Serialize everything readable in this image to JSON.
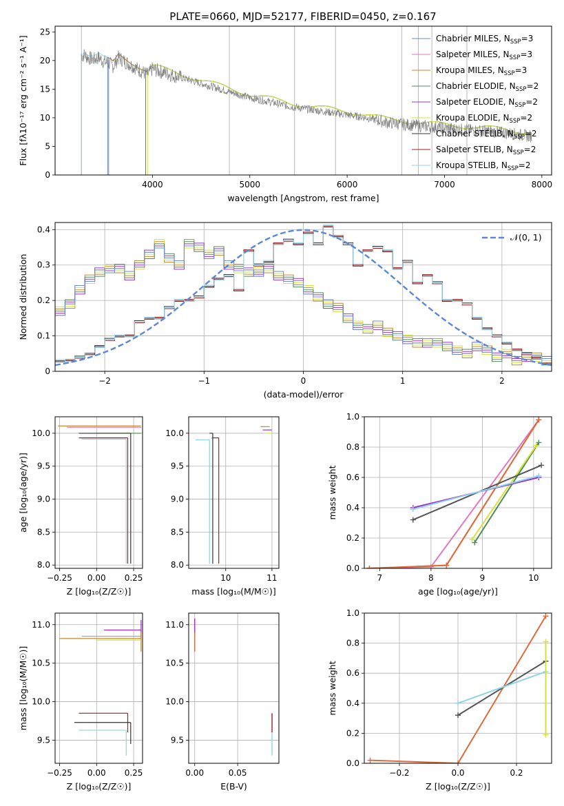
{
  "figure": {
    "title": "PLATE=0660, MJD=52177, FIBERID=0450, z=0.167"
  },
  "series_styles": [
    {
      "name": "Chabrier MILES",
      "nssp": "3",
      "color": "#6b8dd6"
    },
    {
      "name": "Salpeter MILES",
      "nssp": "3",
      "color": "#e377c2"
    },
    {
      "name": "Kroupa MILES",
      "nssp": "3",
      "color": "#c28a2b"
    },
    {
      "name": "Chabrier ELODIE",
      "nssp": "2",
      "color": "#4f8b5b"
    },
    {
      "name": "Salpeter ELODIE",
      "nssp": "2",
      "color": "#9b30c9"
    },
    {
      "name": "Kroupa ELODIE",
      "nssp": "2",
      "color": "#d4e33a"
    },
    {
      "name": "Chabrier STELIB",
      "nssp": "2",
      "color": "#333333"
    },
    {
      "name": "Salpeter STELIB",
      "nssp": "2",
      "color": "#a01f1f"
    },
    {
      "name": "Kroupa STELIB",
      "nssp": "2",
      "color": "#8fd3e8"
    }
  ],
  "chart_data": [
    {
      "id": "spectrum",
      "type": "line",
      "xlabel": "wavelength [Angstrom, rest frame]",
      "ylabel": "Flux [fλ10⁻¹⁷ erg cm⁻² s⁻¹ A⁻¹]",
      "xlim": [
        3000,
        8100
      ],
      "ylim": [
        0,
        26
      ],
      "xticks": [
        4000,
        5000,
        6000,
        7000,
        8000
      ],
      "yticks": [
        0,
        5,
        10,
        15,
        20,
        25
      ],
      "grid": false,
      "legend_placement": "right",
      "observed_color": "#808080",
      "observed": {
        "x": [
          3270,
          3300,
          3350,
          3400,
          3450,
          3500,
          3550,
          3600,
          3650,
          3700,
          3750,
          3800,
          3850,
          3900,
          3950,
          4000,
          4100,
          4200,
          4300,
          4400,
          4500,
          4600,
          4700,
          4800,
          4900,
          5000,
          5200,
          5400,
          5600,
          5800,
          6000,
          6200,
          6400,
          6600,
          6800,
          7000,
          7200,
          7400,
          7600,
          7800,
          7900
        ],
        "y": [
          20.8,
          21.0,
          20.4,
          20.2,
          20.5,
          19.8,
          19.5,
          19.0,
          20.5,
          20.0,
          19.5,
          19.0,
          18.5,
          18.0,
          17.5,
          18.5,
          18.0,
          17.5,
          17.0,
          16.5,
          16.0,
          15.5,
          15.0,
          14.5,
          14.0,
          13.5,
          12.8,
          12.0,
          11.5,
          11.0,
          10.5,
          10.0,
          9.2,
          8.8,
          8.5,
          8.2,
          7.9,
          7.7,
          7.4,
          7.0,
          6.7
        ]
      },
      "model_starts": [
        {
          "series": "Kroupa STELIB",
          "x0": 3270
        },
        {
          "series": "Chabrier MILES",
          "x0": 3540
        },
        {
          "series": "Kroupa MILES",
          "x0": 3550
        },
        {
          "series": "Chabrier ELODIE",
          "x0": 3930
        },
        {
          "series": "Kroupa ELODIE",
          "x0": 3950
        }
      ]
    },
    {
      "id": "residuals",
      "type": "area",
      "xlabel": "(data-model)/error",
      "ylabel": "Normed distribution",
      "xlim": [
        -2.5,
        2.5
      ],
      "ylim": [
        0,
        0.42
      ],
      "xticks": [
        -2,
        -1,
        0,
        1,
        2
      ],
      "yticks": [
        0.0,
        0.1,
        0.2,
        0.3,
        0.4
      ],
      "grid": true,
      "legend_placement": "top-right",
      "gaussian_label": "𝒩(0, 1)",
      "gaussian_color": "#5b87d9",
      "hist_bins_start": -2.5,
      "hist_bin_width": 0.1,
      "hist_wide": [
        0.17,
        0.19,
        0.23,
        0.26,
        0.28,
        0.29,
        0.29,
        0.27,
        0.3,
        0.33,
        0.36,
        0.32,
        0.3,
        0.36,
        0.35,
        0.33,
        0.34,
        0.3,
        0.29,
        0.28,
        0.28,
        0.29,
        0.27,
        0.26,
        0.25,
        0.23,
        0.21,
        0.19,
        0.18,
        0.15,
        0.13,
        0.12,
        0.13,
        0.11,
        0.1,
        0.09,
        0.08,
        0.08,
        0.08,
        0.07,
        0.06,
        0.05,
        0.07,
        0.06,
        0.04,
        0.05,
        0.03,
        0.04,
        0.04,
        0.03
      ],
      "hist_narrow": [
        0.03,
        0.03,
        0.04,
        0.05,
        0.07,
        0.09,
        0.1,
        0.1,
        0.14,
        0.15,
        0.15,
        0.18,
        0.2,
        0.2,
        0.21,
        0.24,
        0.26,
        0.27,
        0.23,
        0.34,
        0.3,
        0.31,
        0.36,
        0.37,
        0.36,
        0.39,
        0.36,
        0.41,
        0.38,
        0.36,
        0.3,
        0.34,
        0.35,
        0.34,
        0.29,
        0.31,
        0.25,
        0.27,
        0.25,
        0.2,
        0.2,
        0.19,
        0.15,
        0.12,
        0.1,
        0.08,
        0.06,
        0.05,
        0.04,
        0.02
      ]
    },
    {
      "id": "age-vs-Z",
      "type": "line",
      "xlabel": "Z [log₁₀(Z/Z☉)]",
      "ylabel": "age  [log₁₀(age/yr)]",
      "xlim": [
        -0.28,
        0.31
      ],
      "ylim": [
        7.95,
        10.25
      ],
      "xticks": [
        -0.25,
        0.0,
        0.25
      ],
      "yticks": [
        8.0,
        8.5,
        9.0,
        9.5,
        10.0
      ],
      "xticklabels": [
        "−0.25",
        "0.00",
        "0.25"
      ],
      "yticklabels": [
        "8.0",
        "8.5",
        "9.0",
        "9.5",
        "10.0"
      ],
      "grid": true,
      "ebars": [
        {
          "color": "#c28a2b",
          "y": 10.11,
          "x": [
            -0.26,
            0.3
          ]
        },
        {
          "color": "#e377c2",
          "y": 10.09,
          "x": [
            -0.2,
            0.3
          ]
        },
        {
          "color": "#d4e33a",
          "y": 10.0,
          "x": [
            0.0,
            0.3
          ]
        },
        {
          "color": "#4f8b5b",
          "y": 10.0,
          "x": [
            0.0,
            0.3
          ]
        },
        {
          "color": "#333333",
          "y": 10.0,
          "x": [
            -0.12,
            0.23
          ],
          "v": [
            8.02,
            10.0
          ]
        },
        {
          "color": "#a01f1f",
          "y": 9.93,
          "x": [
            -0.12,
            0.21
          ],
          "v": [
            8.02,
            9.93
          ]
        },
        {
          "color": "#8fd3e8",
          "y": 9.91,
          "x": [
            -0.1,
            0.2
          ],
          "v": [
            8.02,
            9.91
          ]
        }
      ]
    },
    {
      "id": "age-vs-mass",
      "type": "line",
      "xlabel": "mass [log₁₀(M/M☉)]",
      "ylabel": "",
      "xlim": [
        9.2,
        11.15
      ],
      "ylim": [
        7.95,
        10.25
      ],
      "xticks": [
        10,
        11
      ],
      "yticks": [
        8.0,
        8.5,
        9.0,
        9.5,
        10.0
      ],
      "yticklabels": [
        "8.0",
        "8.5",
        "9.0",
        "9.5",
        "10.0"
      ],
      "grid": true,
      "ebars": [
        {
          "color": "#333333",
          "y": 10.0,
          "x": [
            9.65,
            9.72
          ],
          "v": [
            8.02,
            10.0
          ]
        },
        {
          "color": "#a01f1f",
          "y": 9.93,
          "x": [
            9.7,
            9.85
          ],
          "v": [
            8.02,
            9.93
          ]
        },
        {
          "color": "#8fd3e8",
          "y": 9.9,
          "x": [
            9.35,
            9.65
          ],
          "v": [
            8.02,
            9.9
          ]
        },
        {
          "color": "#c28a2b",
          "y": 10.1,
          "x": [
            10.75,
            10.95
          ]
        },
        {
          "color": "#9b30c9",
          "y": 10.05,
          "x": [
            10.8,
            11.0
          ]
        },
        {
          "color": "#d4e33a",
          "y": 10.0,
          "x": [
            10.85,
            11.0
          ]
        }
      ]
    },
    {
      "id": "massweight-vs-age",
      "type": "line",
      "xlabel": "age  [log₁₀(age/yr)]",
      "ylabel": "mass weight",
      "xlim": [
        6.7,
        10.35
      ],
      "ylim": [
        0.0,
        1.0
      ],
      "xticks": [
        7,
        8,
        9,
        10
      ],
      "yticks": [
        0.0,
        0.2,
        0.4,
        0.6,
        0.8,
        1.0
      ],
      "yticklabels": [
        "0.0",
        "0.2",
        "0.4",
        "0.6",
        "0.8",
        "1.0"
      ],
      "grid": true,
      "series": [
        {
          "name": "Salpeter MILES",
          "color": "#e377c2",
          "x": [
            6.8,
            8.0,
            10.1
          ],
          "y": [
            0.0,
            0.01,
            0.98
          ]
        },
        {
          "name": "Kroupa MILES",
          "color": "#c28a2b",
          "x": [
            6.8,
            8.3,
            10.1
          ],
          "y": [
            0.0,
            0.02,
            0.98
          ]
        },
        {
          "name": "Chabrier MILES",
          "color": "#e06a3a",
          "x": [
            6.8,
            8.3,
            10.1
          ],
          "y": [
            0.0,
            0.02,
            0.98
          ]
        },
        {
          "name": "Chabrier ELODIE",
          "color": "#4f8b5b",
          "x": [
            8.85,
            10.1
          ],
          "y": [
            0.17,
            0.83
          ]
        },
        {
          "name": "Kroupa ELODIE",
          "color": "#d4e33a",
          "x": [
            8.8,
            10.05
          ],
          "y": [
            0.19,
            0.81
          ]
        },
        {
          "name": "Chabrier STELIB",
          "color": "#555555",
          "x": [
            7.65,
            10.15
          ],
          "y": [
            0.32,
            0.68
          ]
        },
        {
          "name": "Salpeter STELIB",
          "color": "#9b30c9",
          "x": [
            7.65,
            10.1
          ],
          "y": [
            0.4,
            0.6
          ]
        },
        {
          "name": "Kroupa STELIB",
          "color": "#8fd3e8",
          "x": [
            7.65,
            10.1
          ],
          "y": [
            0.39,
            0.61
          ]
        }
      ]
    },
    {
      "id": "mass-vs-Z",
      "type": "line",
      "xlabel": "Z [log₁₀(Z/Z☉)]",
      "ylabel": "mass [log₁₀(M/M☉)]",
      "xlim": [
        -0.28,
        0.31
      ],
      "ylim": [
        9.2,
        11.15
      ],
      "xticks": [
        -0.25,
        0.0,
        0.25
      ],
      "xticklabels": [
        "−0.25",
        "0.00",
        "0.25"
      ],
      "yticks": [
        9.5,
        10.0,
        10.5,
        11.0
      ],
      "yticklabels": [
        "9.5",
        "10.0",
        "10.5",
        "11.0"
      ],
      "grid": true,
      "ebars": [
        {
          "color": "#9b30c9",
          "y": 10.93,
          "x": [
            0.05,
            0.3
          ],
          "v": [
            10.8,
            11.06
          ]
        },
        {
          "color": "#e377c2",
          "y": 10.85,
          "x": [
            -0.1,
            0.3
          ]
        },
        {
          "color": "#c28a2b",
          "y": 10.82,
          "x": [
            -0.25,
            0.3
          ],
          "v": [
            10.65,
            10.9
          ]
        },
        {
          "color": "#d4e33a",
          "y": 10.8,
          "x": [
            0.0,
            0.3
          ]
        },
        {
          "color": "#a01f1f",
          "y": 9.85,
          "x": [
            -0.12,
            0.21
          ],
          "v": [
            9.6,
            9.85
          ]
        },
        {
          "color": "#333333",
          "y": 9.73,
          "x": [
            -0.15,
            0.23
          ],
          "v": [
            9.45,
            9.73
          ]
        },
        {
          "color": "#8fd3e8",
          "y": 9.63,
          "x": [
            -0.12,
            0.2
          ],
          "v": [
            9.3,
            9.63
          ]
        }
      ]
    },
    {
      "id": "mass-vs-EBV",
      "type": "line",
      "xlabel": "E(B-V)",
      "ylabel": "",
      "xlim": [
        -0.007,
        0.098
      ],
      "ylim": [
        9.2,
        11.15
      ],
      "xticks": [
        0.0,
        0.05
      ],
      "xticklabels": [
        "0.00",
        "0.05"
      ],
      "yticks": [
        9.5,
        10.0,
        10.5,
        11.0
      ],
      "yticklabels": [
        "9.5",
        "10.0",
        "10.5",
        "11.0"
      ],
      "grid": true,
      "vbars": [
        {
          "color": "#9b30c9",
          "x": 0.0,
          "y": [
            10.85,
            11.08
          ]
        },
        {
          "color": "#e06a3a",
          "x": 0.0,
          "y": [
            10.65,
            10.9
          ]
        },
        {
          "color": "#a01f1f",
          "x": 0.09,
          "y": [
            9.6,
            9.85
          ]
        },
        {
          "color": "#8fd3e8",
          "x": 0.09,
          "y": [
            9.3,
            9.6
          ]
        }
      ]
    },
    {
      "id": "massweight-vs-Z",
      "type": "line",
      "xlabel": "Z [log₁₀(Z/Z☉)]",
      "ylabel": "mass weight",
      "xlim": [
        -0.32,
        0.32
      ],
      "ylim": [
        0.0,
        1.0
      ],
      "xticks": [
        -0.2,
        0.0,
        0.2
      ],
      "xticklabels": [
        "−0.2",
        "0.0",
        "0.2"
      ],
      "yticks": [
        0.0,
        0.2,
        0.4,
        0.6,
        0.8,
        1.0
      ],
      "yticklabels": [
        "0.0",
        "0.2",
        "0.4",
        "0.6",
        "0.8",
        "1.0"
      ],
      "grid": true,
      "series": [
        {
          "name": "MILES",
          "color": "#e06a3a",
          "x": [
            -0.3,
            0.0,
            0.3
          ],
          "y": [
            0.02,
            0.0,
            0.98
          ]
        },
        {
          "name": "Chabrier STELIB",
          "color": "#555555",
          "x": [
            0.0,
            0.3
          ],
          "y": [
            0.32,
            0.68
          ]
        },
        {
          "name": "Kroupa STELIB",
          "color": "#8fd3e8",
          "x": [
            0.0,
            0.3
          ],
          "y": [
            0.4,
            0.61
          ]
        },
        {
          "name": "Kroupa ELODIE",
          "color": "#d4e33a",
          "x": [
            0.3,
            0.3
          ],
          "y": [
            0.19,
            0.81
          ]
        }
      ]
    }
  ]
}
